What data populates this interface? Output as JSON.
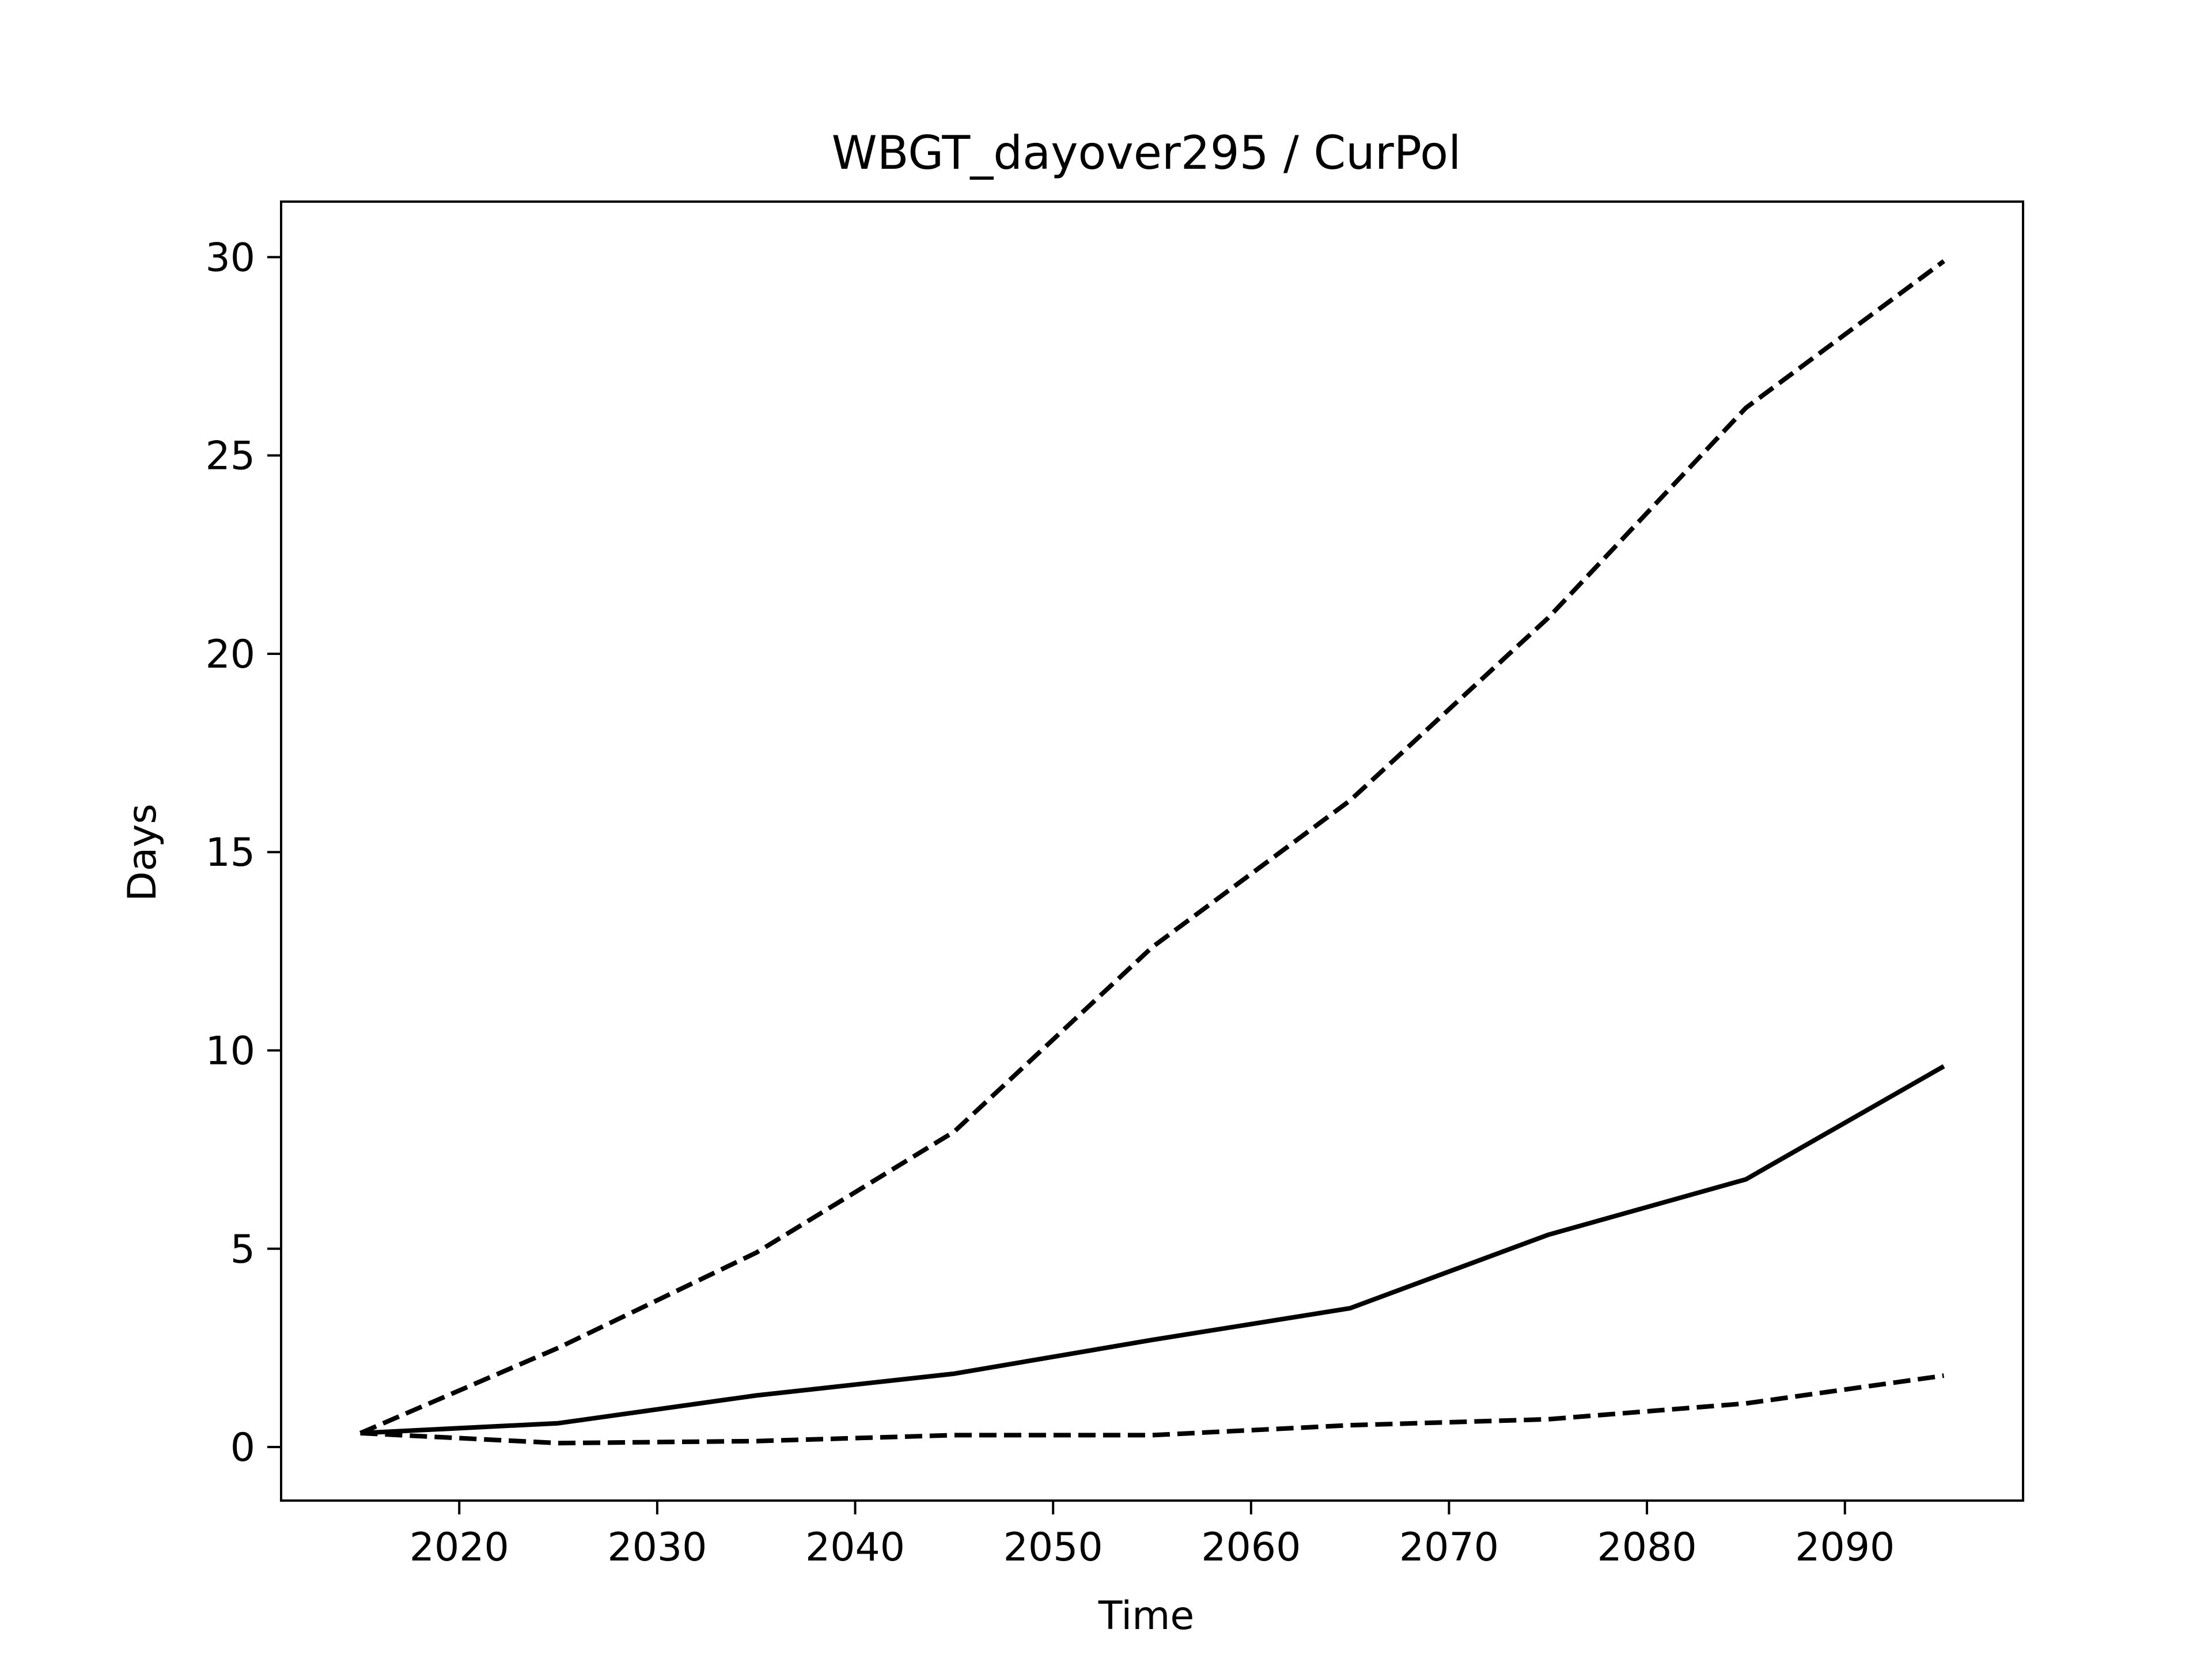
{
  "chart_data": {
    "type": "line",
    "title": "WBGT_dayover295 / CurPol",
    "xlabel": "Time",
    "ylabel": "Days",
    "xlim": [
      2011,
      2099
    ],
    "ylim": [
      -1.35,
      31.4
    ],
    "xticks": [
      2020,
      2030,
      2040,
      2050,
      2060,
      2070,
      2080,
      2090
    ],
    "yticks": [
      0,
      5,
      10,
      15,
      20,
      25,
      30
    ],
    "grid": false,
    "x": [
      2015,
      2025,
      2035,
      2045,
      2055,
      2065,
      2075,
      2085,
      2095
    ],
    "series": [
      {
        "style": "solid",
        "color": "#000000",
        "values": [
          0.35,
          0.6,
          1.3,
          1.85,
          2.7,
          3.5,
          5.35,
          6.75,
          9.6
        ]
      },
      {
        "style": "dashed",
        "color": "#000000",
        "values": [
          0.35,
          2.5,
          4.9,
          7.95,
          12.6,
          16.3,
          20.9,
          26.2,
          29.9
        ]
      },
      {
        "style": "dashed",
        "color": "#000000",
        "values": [
          0.35,
          0.1,
          0.15,
          0.3,
          0.3,
          0.55,
          0.7,
          1.1,
          1.8
        ]
      }
    ]
  }
}
